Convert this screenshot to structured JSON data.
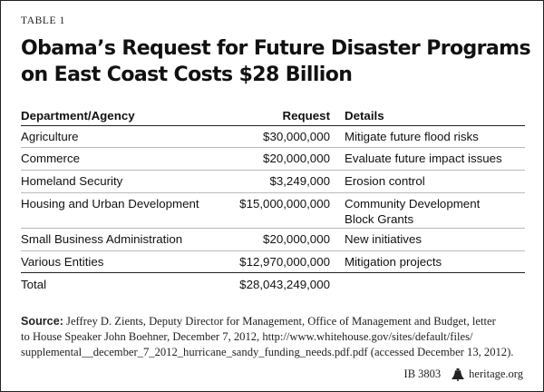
{
  "table_label": "TABLE 1",
  "title_lines": [
    "Obama’s Request for Future Disaster Programs",
    "on East Coast Costs $28 Billion"
  ],
  "table": {
    "headers": [
      "Department/Agency",
      "Request",
      "Details"
    ],
    "rows": [
      {
        "dept": "Agriculture",
        "request": "$30,000,000",
        "details": [
          "Mitigate future flood risks"
        ]
      },
      {
        "dept": "Commerce",
        "request": "$20,000,000",
        "details": [
          "Evaluate future impact issues"
        ]
      },
      {
        "dept": "Homeland Security",
        "request": "$3,249,000",
        "details": [
          "Erosion control"
        ]
      },
      {
        "dept": "Housing and Urban Development",
        "request": "$15,000,000,000",
        "details": [
          "Community Development",
          "Block Grants"
        ]
      },
      {
        "dept": "Small Business Administration",
        "request": "$20,000,000",
        "details": [
          "New initiatives"
        ]
      },
      {
        "dept": "Various Entities",
        "request": "$12,970,000,000",
        "details": [
          "Mitigation projects"
        ]
      }
    ],
    "total": {
      "label": "Total",
      "request": "$28,043,249,000"
    }
  },
  "source": {
    "label": "Source:",
    "lines": [
      " Jeffrey D. Zients, Deputy Director for Management, Office of Management and Budget, letter",
      "to House Speaker John Boehner, December 7, 2012, http://www.whitehouse.gov/sites/default/files/",
      "supplemental__december_7_2012_hurricane_sandy_funding_needs.pdf.pdf (accessed December 13, 2012)."
    ]
  },
  "footer": {
    "id": "IB 3803",
    "icon": "liberty-bell-icon",
    "site": "heritage.org"
  }
}
